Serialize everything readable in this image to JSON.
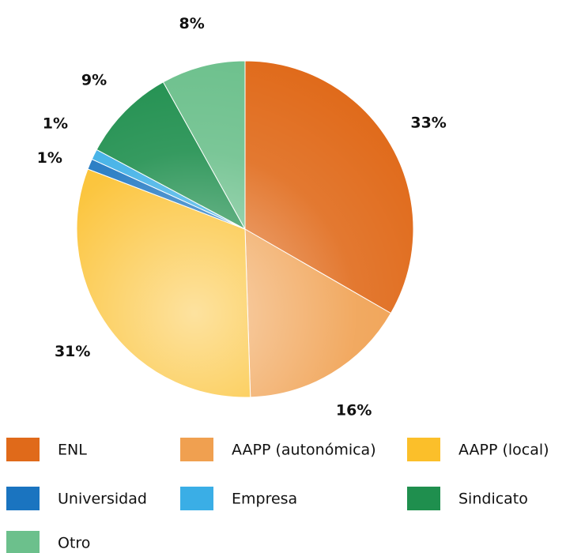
{
  "chart_data": {
    "type": "pie",
    "categories": [
      "ENL",
      "AAPP (autonómica)",
      "AAPP (local)",
      "Universidad",
      "Empresa",
      "Sindicato",
      "Otro"
    ],
    "values": [
      33,
      16,
      31,
      1,
      1,
      9,
      8
    ],
    "value_labels": [
      "33%",
      "16%",
      "31%",
      "1%",
      "1%",
      "9%",
      "8%"
    ],
    "colors": [
      "#e06a1a",
      "#f0a050",
      "#fbbf2a",
      "#1a74c0",
      "#3aaee6",
      "#1f8f4e",
      "#6cc08c"
    ]
  }
}
